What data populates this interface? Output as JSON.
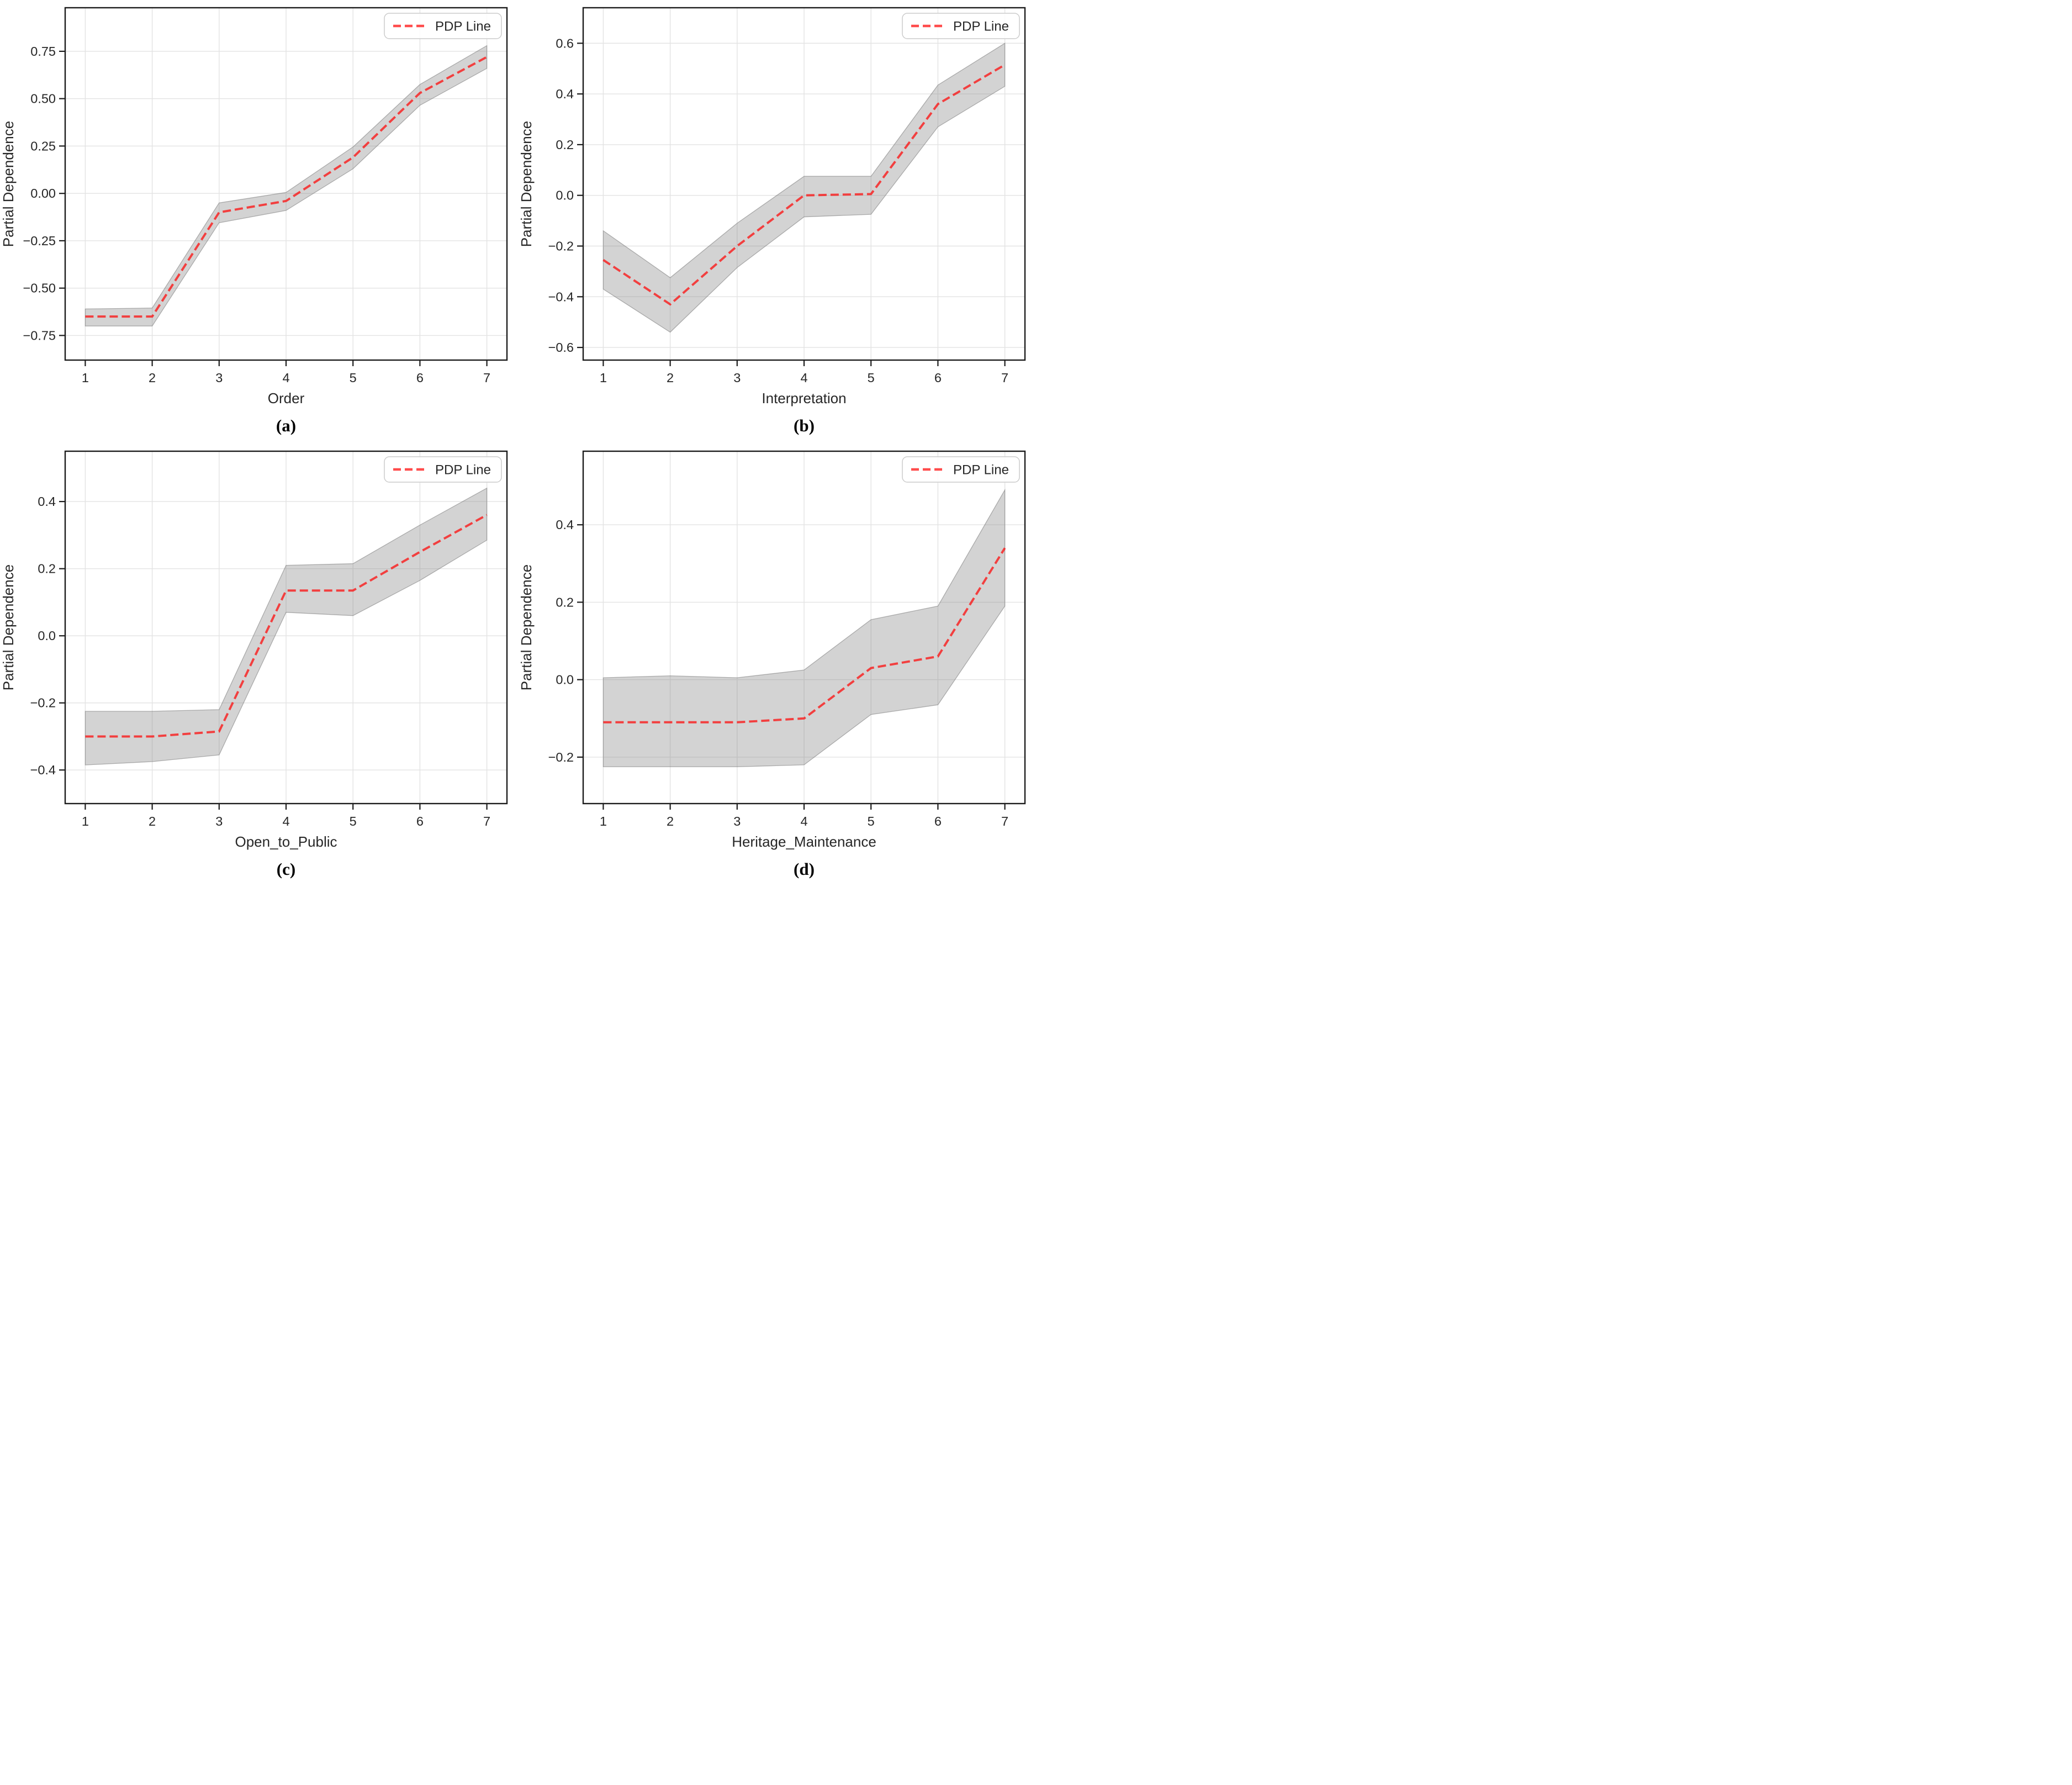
{
  "theme": {
    "background": "#ffffff",
    "pdp_line_color": "rgba(255,0,0,0.7)",
    "pdp_line_hex_on_white": "#ff4d4d",
    "band_fill": "rgba(128,128,128,0.35)",
    "band_edge": "rgba(110,110,110,0.5)",
    "grid_color": "#e3e3e3",
    "axis_color": "#1c1c1c",
    "text_color": "#262626",
    "legend_border": "#cccccc",
    "legend_bg": "rgba(255,255,255,0.85)"
  },
  "chart_data": [
    {
      "type": "line",
      "panel": "a",
      "caption": "(a)",
      "xlabel": "Order",
      "ylabel": "Partial Dependence",
      "grid": true,
      "legend": {
        "position": "upper-right",
        "entries": [
          "PDP Line"
        ]
      },
      "x": [
        1,
        2,
        3,
        4,
        5,
        6,
        7
      ],
      "xtick_labels": [
        "1",
        "2",
        "3",
        "4",
        "5",
        "6",
        "7"
      ],
      "series": [
        {
          "name": "PDP Line",
          "style": "dashed",
          "values": [
            -0.65,
            -0.65,
            -0.1,
            -0.04,
            0.19,
            0.53,
            0.72
          ]
        }
      ],
      "band": {
        "lower": [
          -0.7,
          -0.7,
          -0.155,
          -0.09,
          0.13,
          0.465,
          0.66
        ],
        "upper": [
          -0.61,
          -0.605,
          -0.05,
          0.005,
          0.245,
          0.575,
          0.78
        ]
      },
      "xlim": [
        0.7,
        7.3
      ],
      "ylim": [
        -0.88,
        0.98
      ],
      "yticks": [
        {
          "v": 0.75,
          "label": "0.75"
        },
        {
          "v": 0.5,
          "label": "0.50"
        },
        {
          "v": 0.25,
          "label": "0.25"
        },
        {
          "v": 0.0,
          "label": "0.00"
        },
        {
          "v": -0.25,
          "label": "−0.25"
        },
        {
          "v": -0.5,
          "label": "−0.50"
        },
        {
          "v": -0.75,
          "label": "−0.75"
        }
      ]
    },
    {
      "type": "line",
      "panel": "b",
      "caption": "(b)",
      "xlabel": "Interpretation",
      "ylabel": "Partial Dependence",
      "grid": true,
      "legend": {
        "position": "upper-right",
        "entries": [
          "PDP Line"
        ]
      },
      "x": [
        1,
        2,
        3,
        4,
        5,
        6,
        7
      ],
      "xtick_labels": [
        "1",
        "2",
        "3",
        "4",
        "5",
        "6",
        "7"
      ],
      "series": [
        {
          "name": "PDP Line",
          "style": "dashed",
          "values": [
            -0.255,
            -0.43,
            -0.2,
            0.0,
            0.005,
            0.36,
            0.515
          ]
        }
      ],
      "band": {
        "lower": [
          -0.37,
          -0.54,
          -0.285,
          -0.085,
          -0.075,
          0.27,
          0.43
        ],
        "upper": [
          -0.14,
          -0.325,
          -0.11,
          0.075,
          0.075,
          0.435,
          0.6
        ]
      },
      "xlim": [
        0.7,
        7.3
      ],
      "ylim": [
        -0.65,
        0.74
      ],
      "yticks": [
        {
          "v": 0.6,
          "label": "0.6"
        },
        {
          "v": 0.4,
          "label": "0.4"
        },
        {
          "v": 0.2,
          "label": "0.2"
        },
        {
          "v": 0.0,
          "label": "0.0"
        },
        {
          "v": -0.2,
          "label": "−0.2"
        },
        {
          "v": -0.4,
          "label": "−0.4"
        },
        {
          "v": -0.6,
          "label": "−0.6"
        }
      ]
    },
    {
      "type": "line",
      "panel": "c",
      "caption": "(c)",
      "xlabel": "Open_to_Public",
      "ylabel": "Partial Dependence",
      "grid": true,
      "legend": {
        "position": "upper-right",
        "entries": [
          "PDP Line"
        ]
      },
      "x": [
        1,
        2,
        3,
        4,
        5,
        6,
        7
      ],
      "xtick_labels": [
        "1",
        "2",
        "3",
        "4",
        "5",
        "6",
        "7"
      ],
      "series": [
        {
          "name": "PDP Line",
          "style": "dashed",
          "values": [
            -0.3,
            -0.3,
            -0.285,
            0.135,
            0.135,
            0.25,
            0.36
          ]
        }
      ],
      "band": {
        "lower": [
          -0.385,
          -0.375,
          -0.355,
          0.07,
          0.06,
          0.165,
          0.285
        ],
        "upper": [
          -0.225,
          -0.225,
          -0.22,
          0.21,
          0.215,
          0.33,
          0.44
        ]
      },
      "xlim": [
        0.7,
        7.3
      ],
      "ylim": [
        -0.5,
        0.55
      ],
      "yticks": [
        {
          "v": 0.4,
          "label": "0.4"
        },
        {
          "v": 0.2,
          "label": "0.2"
        },
        {
          "v": 0.0,
          "label": "0.0"
        },
        {
          "v": -0.2,
          "label": "−0.2"
        },
        {
          "v": -0.4,
          "label": "−0.4"
        }
      ]
    },
    {
      "type": "line",
      "panel": "d",
      "caption": "(d)",
      "xlabel": "Heritage_Maintenance",
      "ylabel": "Partial Dependence",
      "grid": true,
      "legend": {
        "position": "upper-right",
        "entries": [
          "PDP Line"
        ]
      },
      "x": [
        1,
        2,
        3,
        4,
        5,
        6,
        7
      ],
      "xtick_labels": [
        "1",
        "2",
        "3",
        "4",
        "5",
        "6",
        "7"
      ],
      "series": [
        {
          "name": "PDP Line",
          "style": "dashed",
          "values": [
            -0.11,
            -0.11,
            -0.11,
            -0.1,
            0.03,
            0.06,
            0.34
          ]
        }
      ],
      "band": {
        "lower": [
          -0.225,
          -0.225,
          -0.225,
          -0.22,
          -0.09,
          -0.065,
          0.19
        ],
        "upper": [
          0.005,
          0.01,
          0.005,
          0.025,
          0.155,
          0.19,
          0.49
        ]
      },
      "xlim": [
        0.7,
        7.3
      ],
      "ylim": [
        -0.32,
        0.59
      ],
      "yticks": [
        {
          "v": 0.4,
          "label": "0.4"
        },
        {
          "v": 0.2,
          "label": "0.2"
        },
        {
          "v": 0.0,
          "label": "0.0"
        },
        {
          "v": -0.2,
          "label": "−0.2"
        }
      ]
    }
  ]
}
